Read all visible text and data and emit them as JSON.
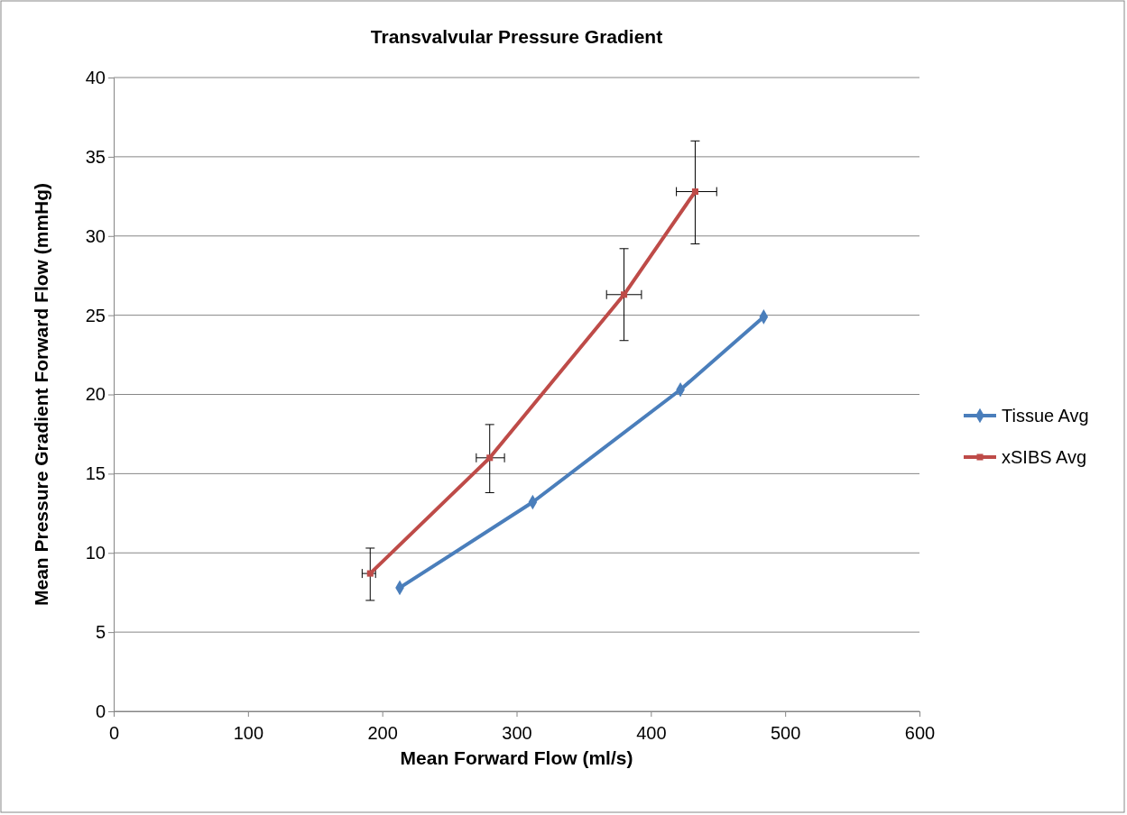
{
  "chart_data": {
    "type": "line",
    "title": "Transvalvular Pressure Gradient",
    "xlabel": "Mean Forward Flow (ml/s)",
    "ylabel": "Mean Pressure Gradient Forward Flow (mmHg)",
    "xlim": [
      0,
      600
    ],
    "xticks": [
      0,
      100,
      200,
      300,
      400,
      500,
      600
    ],
    "ylim": [
      0,
      40
    ],
    "yticks": [
      0,
      5,
      10,
      15,
      20,
      25,
      30,
      35,
      40
    ],
    "grid": "y",
    "legend": "right",
    "series": [
      {
        "name": "Tissue Avg",
        "color": "#4a7ebb",
        "marker": "diamond",
        "x": [
          213,
          312,
          422,
          484
        ],
        "values": [
          7.8,
          13.2,
          20.3,
          24.9
        ]
      },
      {
        "name": "xSIBS Avg",
        "color": "#be4b48",
        "marker": "square",
        "x": [
          191,
          280,
          380,
          433
        ],
        "values": [
          8.7,
          16,
          26.3,
          32.8
        ],
        "errors": [
          [
            7,
            10.3
          ],
          [
            13.8,
            18.1
          ],
          [
            23.4,
            29.2
          ],
          [
            29.5,
            36
          ]
        ],
        "xerrors": [
          [
            185,
            195
          ],
          [
            270,
            291
          ],
          [
            367,
            393
          ],
          [
            419,
            449
          ]
        ]
      }
    ]
  }
}
